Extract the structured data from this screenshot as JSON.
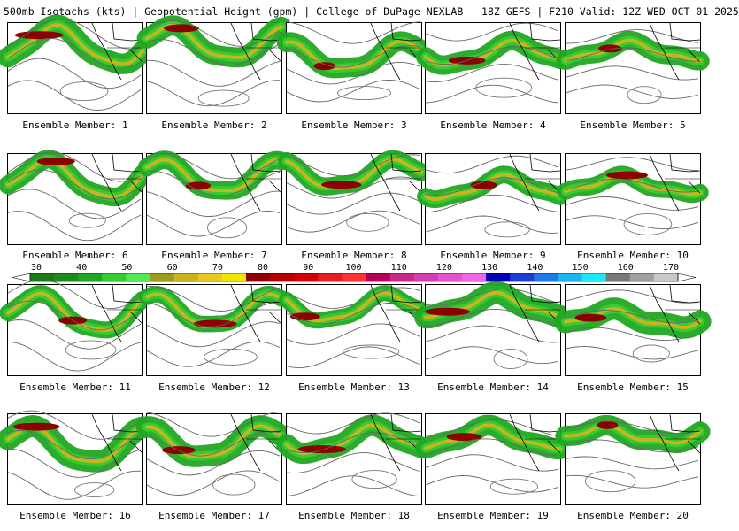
{
  "title": "500mb Isotachs (kts) | Geopotential Height (gpm) | College of DuPage NEXLAB   18Z GEFS | F210 Valid: 12Z WED OCT 01 2025",
  "colorbar": {
    "labels": [
      "30",
      "40",
      "50",
      "60",
      "70",
      "80",
      "90",
      "100",
      "110",
      "120",
      "130",
      "140",
      "150",
      "160",
      "170"
    ],
    "colors": [
      "#1a7a1a",
      "#1a8c1a",
      "#22a622",
      "#33cc33",
      "#55e655",
      "#9c9c1a",
      "#c8b41e",
      "#e6c81e",
      "#f0e600",
      "#8c0000",
      "#b40000",
      "#d20000",
      "#e61e1e",
      "#ff3232",
      "#b4005a",
      "#c8288c",
      "#d23cb4",
      "#e650d2",
      "#f064e6",
      "#0000b4",
      "#1e3cd2",
      "#1e78e6",
      "#1eb4f0",
      "#1ee6ff",
      "#787878",
      "#a0a0a0",
      "#c8c8c8"
    ]
  },
  "members": [
    {
      "label": "Ensemble Member: 1"
    },
    {
      "label": "Ensemble Member: 2"
    },
    {
      "label": "Ensemble Member: 3"
    },
    {
      "label": "Ensemble Member: 4"
    },
    {
      "label": "Ensemble Member: 5"
    },
    {
      "label": "Ensemble Member: 6"
    },
    {
      "label": "Ensemble Member: 7"
    },
    {
      "label": "Ensemble Member: 8"
    },
    {
      "label": "Ensemble Member: 9"
    },
    {
      "label": "Ensemble Member: 10"
    },
    {
      "label": "Ensemble Member: 11"
    },
    {
      "label": "Ensemble Member: 12"
    },
    {
      "label": "Ensemble Member: 13"
    },
    {
      "label": "Ensemble Member: 14"
    },
    {
      "label": "Ensemble Member: 15"
    },
    {
      "label": "Ensemble Member: 16"
    },
    {
      "label": "Ensemble Member: 17"
    },
    {
      "label": "Ensemble Member: 18"
    },
    {
      "label": "Ensemble Member: 19"
    },
    {
      "label": "Ensemble Member: 20"
    }
  ]
}
